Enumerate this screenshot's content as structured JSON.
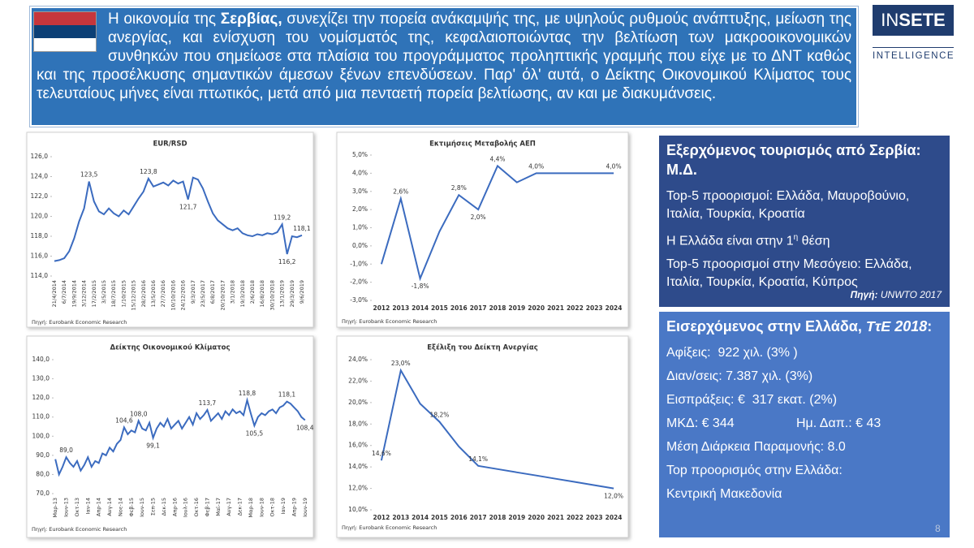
{
  "header": {
    "text": [
      "Η οικονομία της ",
      "Σερβίας,",
      " συνεχίζει την πορεία ανάκαμψής της, με υψηλούς ρυθμούς ανάπτυξης, μείωση της ανεργίας, και ενίσχυση του νομίσματός της, κεφαλαιοποιώντας την βελτίωση των μακροοικονομικών συνθηκών που σημείωσε στα πλαίσια του προγράμματος προληπτικής γραμμής που είχε με το ΔΝΤ καθώς και της προσέλκυσης σημαντικών άμεσων ξένων επενδύσεων. Παρ' όλ' αυτά, ο Δείκτης Οικονομικού Κλίματος τους τελευταίους μήνες είναι πτωτικός, μετά από μια πενταετή πορεία βελτίωσης, αν και με διακυμάνσεις."
    ]
  },
  "logo": {
    "brand_a": "IN",
    "brand_b": "SETE",
    "tagline": "INTELLIGENCE"
  },
  "outbound_panel": {
    "title": "Εξερχόμενος τουρισμός από Σερβία: Μ.Δ.",
    "line_1": "Top-5 προορισμοί: Ελλάδα, Μαυροβούνιο, Ιταλία, Τουρκία, Κροατία",
    "line_2": [
      "Η Ελλάδα είναι στην 1",
      "η",
      " θέση"
    ],
    "line_3": "Top-5 προορισμοί στην Μεσόγειο: Ελλάδα, Ιταλία, Τουρκία, Κροατία, Κύπρος",
    "source": [
      "Πηγή:",
      " UNWTO 2017"
    ]
  },
  "inbound_panel": {
    "title": [
      "Εισερχόμενος στην Ελλάδα, ",
      "ΤτΕ 2018",
      ":"
    ],
    "lines": [
      "Αφίξεις:  922 χιλ. (3% )",
      "Διαν/σεις: 7.387 χιλ. (3%)",
      "Εισπράξεις: €  317 εκατ. (2%)"
    ],
    "mkd": "ΜΚΔ: € 344",
    "daily_spend": "Ημ. Δαπ.: € 43",
    "lines_after": [
      "Μέση Διάρκεια Παραμονής: 8.0",
      "Top προορισμός στην Ελλάδα:",
      "Κεντρική Μακεδονία"
    ]
  },
  "page_number": "8",
  "chart_data": [
    {
      "type": "line",
      "title": "EUR/RSD",
      "color": "#3b6bbf",
      "source": "Πηγή: Eurobank Economic Research",
      "categories": [
        "21/4/2014",
        null,
        "6/7/2014",
        null,
        "19/9/2014",
        null,
        "3/12/2014",
        null,
        "17/2/2015",
        null,
        "3/5/2015",
        null,
        "18/7/2015",
        null,
        "1/10/2015",
        null,
        "15/12/2015",
        null,
        "28/2/2016",
        null,
        "13/5/2016",
        null,
        "27/7/2016",
        null,
        "10/10/2016",
        null,
        "24/12/2016",
        null,
        "9/3/2017",
        null,
        "23/5/2017",
        null,
        "6/8/2017",
        null,
        "20/10/2017",
        null,
        "3/1/2018",
        null,
        "19/3/2018",
        null,
        "2/6/2018",
        null,
        "16/8/2018",
        null,
        "30/10/2018",
        null,
        "13/1/2019",
        null,
        "29/3/2019",
        null,
        "9/6/2019"
      ],
      "values": [
        115.5,
        115.6,
        115.8,
        116.5,
        117.8,
        119.5,
        120.8,
        123.5,
        121.5,
        120.5,
        120.2,
        120.8,
        120.3,
        120.0,
        120.6,
        120.2,
        121.0,
        121.8,
        122.5,
        123.8,
        123.0,
        123.2,
        123.4,
        123.1,
        123.6,
        123.3,
        123.5,
        121.7,
        123.9,
        123.7,
        122.8,
        121.5,
        120.3,
        119.6,
        119.2,
        118.8,
        118.6,
        118.8,
        118.3,
        118.1,
        118.0,
        118.2,
        118.1,
        118.3,
        118.2,
        118.4,
        119.2,
        116.2,
        118.0,
        117.9,
        118.1
      ],
      "value_labels": [
        null,
        null,
        null,
        null,
        null,
        null,
        null,
        "123,5",
        null,
        null,
        null,
        null,
        null,
        null,
        null,
        null,
        null,
        null,
        null,
        "123,8",
        null,
        null,
        null,
        null,
        null,
        null,
        null,
        "121,7",
        null,
        null,
        null,
        null,
        null,
        null,
        null,
        null,
        null,
        null,
        null,
        null,
        null,
        null,
        null,
        null,
        null,
        null,
        "119,2",
        "116,2",
        null,
        null,
        "118,1"
      ],
      "ylim": [
        114,
        126
      ],
      "yticks": [
        {
          "value": 114,
          "label": "114,0"
        },
        {
          "value": 116,
          "label": "116,0"
        },
        {
          "value": 118,
          "label": "118,0"
        },
        {
          "value": 120,
          "label": "120,0"
        },
        {
          "value": 122,
          "label": "122,0"
        },
        {
          "value": 124,
          "label": "124,0"
        },
        {
          "value": 126,
          "label": "126,0"
        }
      ]
    },
    {
      "type": "line",
      "title": "Εκτιμήσεις Μεταβολής ΑΕΠ",
      "color": "#3b6bbf",
      "source": "Πηγή: Eurobank Economic Research",
      "categories": [
        "2012",
        "2013",
        "2014",
        "2015",
        "2016",
        "2017",
        "2018",
        "2019",
        "2020",
        "2021",
        "2022",
        "2023",
        "2024"
      ],
      "values": [
        -1.0,
        2.6,
        -1.8,
        0.8,
        2.8,
        2.0,
        4.4,
        3.5,
        4.0,
        4.0,
        4.0,
        4.0,
        4.0
      ],
      "value_labels": [
        null,
        "2,6%",
        "-1,8%",
        null,
        "2,8%",
        "2,0%",
        "4,4%",
        null,
        "4,0%",
        null,
        null,
        null,
        "4,0%"
      ],
      "ylim": [
        -3,
        5
      ],
      "yticks": [
        {
          "value": -3,
          "label": "-3,0%"
        },
        {
          "value": -2,
          "label": "-2,0%"
        },
        {
          "value": -1,
          "label": "-1,0%"
        },
        {
          "value": 0,
          "label": "0,0%"
        },
        {
          "value": 1,
          "label": "1,0%"
        },
        {
          "value": 2,
          "label": "2,0%"
        },
        {
          "value": 3,
          "label": "3,0%"
        },
        {
          "value": 4,
          "label": "4,0%"
        },
        {
          "value": 5,
          "label": "5,0%"
        }
      ]
    },
    {
      "type": "line",
      "title": "Δείκτης Οικονομικού Κλίματος",
      "color": "#3b6bbf",
      "source": "Πηγή: Eurobank Economic Research",
      "categories": [
        "Μαρ-13",
        null,
        null,
        "Ιουν-13",
        null,
        null,
        "Οκτ-13",
        null,
        null,
        "Ιαν-14",
        null,
        null,
        "Απρ-14",
        null,
        null,
        "Αυγ-14",
        null,
        null,
        "Νοε-14",
        null,
        null,
        "Φεβ-15",
        null,
        null,
        "Ιουν-15",
        null,
        null,
        "Σεπ-15",
        null,
        null,
        "Δεκ-15",
        null,
        null,
        "Απρ-16",
        null,
        null,
        "Ιουλ-16",
        null,
        null,
        "Οκτ-16",
        null,
        null,
        "Φεβ-17",
        null,
        null,
        "Μαϊ-17",
        null,
        null,
        "Αυγ-17",
        null,
        null,
        "Δεκ-17",
        null,
        null,
        "Μαρ-18",
        null,
        null,
        "Ιουν-18",
        null,
        null,
        "Οκτ-18",
        null,
        null,
        "Ιαν-19",
        null,
        null,
        "Απρ-19",
        null,
        null,
        "Ιουν-19"
      ],
      "values": [
        88,
        80,
        84,
        89,
        86,
        84,
        87,
        82,
        85,
        89,
        84,
        87,
        86,
        91,
        90,
        94,
        92,
        96,
        98,
        104.6,
        101,
        103,
        102,
        108,
        104,
        103,
        107,
        99.1,
        104,
        107,
        105,
        109,
        104,
        106,
        108,
        104,
        107,
        110,
        106,
        112,
        109,
        111,
        113.7,
        108,
        110,
        112,
        109,
        113,
        111,
        114,
        112,
        113,
        111,
        118.8,
        112,
        105.5,
        110,
        112,
        111,
        113,
        114,
        112,
        115,
        116,
        118.1,
        117,
        115,
        113,
        110,
        108.4
      ],
      "value_labels": [
        null,
        null,
        null,
        "89,0",
        null,
        null,
        null,
        null,
        null,
        null,
        null,
        null,
        null,
        null,
        null,
        null,
        null,
        null,
        null,
        "104,6",
        null,
        null,
        null,
        "108,0",
        null,
        null,
        null,
        "99,1",
        null,
        null,
        null,
        null,
        null,
        null,
        null,
        null,
        null,
        null,
        null,
        null,
        null,
        null,
        "113,7",
        null,
        null,
        null,
        null,
        null,
        null,
        null,
        null,
        null,
        null,
        "118,8",
        null,
        "105,5",
        null,
        null,
        null,
        null,
        null,
        null,
        null,
        null,
        "118,1",
        null,
        null,
        null,
        null,
        "108,4"
      ],
      "ylim": [
        70,
        140
      ],
      "yticks": [
        {
          "value": 70,
          "label": "70,0"
        },
        {
          "value": 80,
          "label": "80,0"
        },
        {
          "value": 90,
          "label": "90,0"
        },
        {
          "value": 100,
          "label": "100,0"
        },
        {
          "value": 110,
          "label": "110,0"
        },
        {
          "value": 120,
          "label": "120,0"
        },
        {
          "value": 130,
          "label": "130,0"
        },
        {
          "value": 140,
          "label": "140,0"
        }
      ]
    },
    {
      "type": "line",
      "title": "Εξέλιξη του Δείκτη Ανεργίας",
      "color": "#3b6bbf",
      "source": "Πηγή: Eurobank Economic Research",
      "categories": [
        "2012",
        "2013",
        "2014",
        "2015",
        "2016",
        "2017",
        "2018",
        "2019",
        "2020",
        "2021",
        "2022",
        "2023",
        "2024"
      ],
      "values": [
        14.6,
        23.0,
        19.9,
        18.2,
        15.9,
        14.1,
        13.8,
        13.5,
        13.2,
        12.9,
        12.6,
        12.3,
        12.0
      ],
      "value_labels": [
        "14,6%",
        "23,0%",
        null,
        "18,2%",
        null,
        "14,1%",
        null,
        null,
        null,
        null,
        null,
        null,
        "12,0%"
      ],
      "ylim": [
        10,
        24
      ],
      "yticks": [
        {
          "value": 10,
          "label": "10,0%"
        },
        {
          "value": 12,
          "label": "12,0%"
        },
        {
          "value": 14,
          "label": "14,0%"
        },
        {
          "value": 16,
          "label": "16,0%"
        },
        {
          "value": 18,
          "label": "18,0%"
        },
        {
          "value": 20,
          "label": "20,0%"
        },
        {
          "value": 22,
          "label": "22,0%"
        },
        {
          "value": 24,
          "label": "24,0%"
        }
      ]
    }
  ]
}
